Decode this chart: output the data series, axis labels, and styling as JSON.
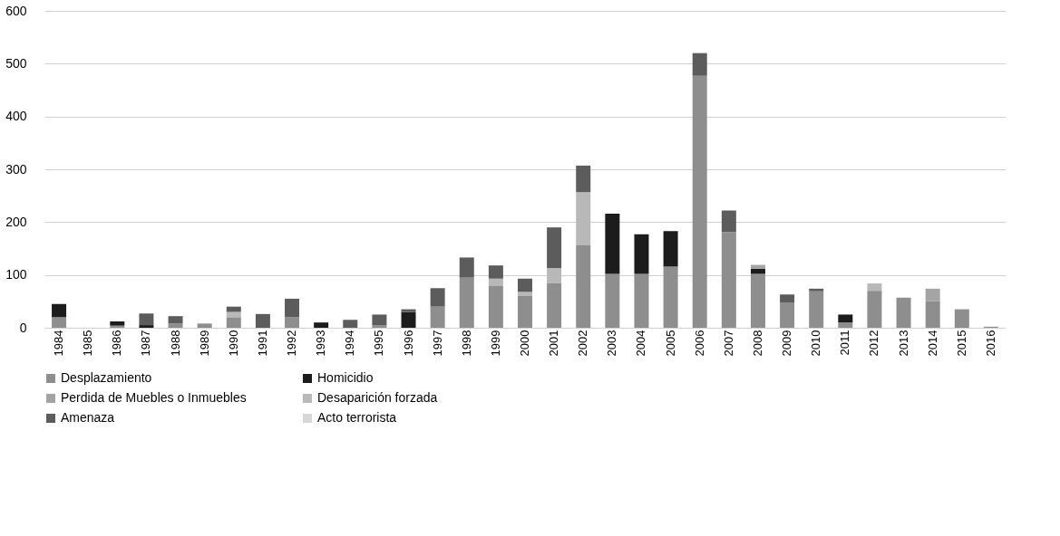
{
  "chart_data": {
    "type": "bar",
    "stacked": true,
    "categories": [
      "1984",
      "1985",
      "1986",
      "1987",
      "1988",
      "1989",
      "1990",
      "1991",
      "1992",
      "1993",
      "1994",
      "1995",
      "1996",
      "1997",
      "1998",
      "1999",
      "2000",
      "2001",
      "2002",
      "2003",
      "2004",
      "2005",
      "2006",
      "2007",
      "2008",
      "2009",
      "2010",
      "2011",
      "2012",
      "2013",
      "2014",
      "2015",
      "2016"
    ],
    "series": [
      {
        "name": "Desplazamiento",
        "color": "#8e8e8e",
        "values": [
          20,
          0,
          4,
          0,
          8,
          8,
          20,
          0,
          20,
          0,
          0,
          5,
          0,
          40,
          95,
          80,
          60,
          85,
          156,
          102,
          102,
          116,
          477,
          181,
          102,
          48,
          69,
          10,
          70,
          57,
          50,
          35,
          2
        ]
      },
      {
        "name": "Homicidio",
        "color": "#1c1c1c",
        "values": [
          25,
          0,
          8,
          5,
          0,
          0,
          0,
          0,
          0,
          10,
          0,
          0,
          30,
          0,
          0,
          0,
          0,
          0,
          0,
          114,
          75,
          67,
          0,
          0,
          10,
          0,
          0,
          15,
          0,
          0,
          0,
          0,
          0
        ]
      },
      {
        "name": "Perdida de Muebles o Inmuebles",
        "color": "#a4a4a4",
        "values": [
          0,
          0,
          0,
          0,
          0,
          0,
          0,
          0,
          0,
          0,
          0,
          0,
          0,
          0,
          0,
          0,
          0,
          0,
          0,
          0,
          0,
          0,
          0,
          0,
          7,
          0,
          0,
          0,
          0,
          0,
          24,
          0,
          0
        ]
      },
      {
        "name": "Desaparición forzada",
        "color": "#b8b8b8",
        "values": [
          0,
          0,
          0,
          0,
          0,
          0,
          10,
          0,
          0,
          0,
          0,
          0,
          0,
          0,
          0,
          13,
          8,
          28,
          101,
          0,
          0,
          0,
          0,
          0,
          0,
          0,
          0,
          0,
          14,
          0,
          0,
          0,
          0
        ]
      },
      {
        "name": "Amenaza",
        "color": "#5c5c5c",
        "values": [
          0,
          0,
          0,
          22,
          14,
          0,
          10,
          26,
          35,
          0,
          15,
          20,
          5,
          35,
          38,
          25,
          25,
          77,
          50,
          0,
          0,
          0,
          43,
          41,
          0,
          15,
          5,
          0,
          0,
          0,
          0,
          0,
          0
        ]
      },
      {
        "name": "Acto terrorista",
        "color": "#d6d6d6",
        "values": [
          0,
          0,
          0,
          0,
          0,
          0,
          0,
          0,
          0,
          0,
          0,
          0,
          0,
          0,
          0,
          0,
          0,
          0,
          0,
          0,
          0,
          0,
          0,
          0,
          0,
          0,
          0,
          0,
          0,
          0,
          0,
          0,
          0
        ]
      }
    ],
    "ylim": [
      0,
      600
    ],
    "yticks": [
      0,
      100,
      200,
      300,
      400,
      500,
      600
    ],
    "grid": "y",
    "legend": "bottom"
  }
}
